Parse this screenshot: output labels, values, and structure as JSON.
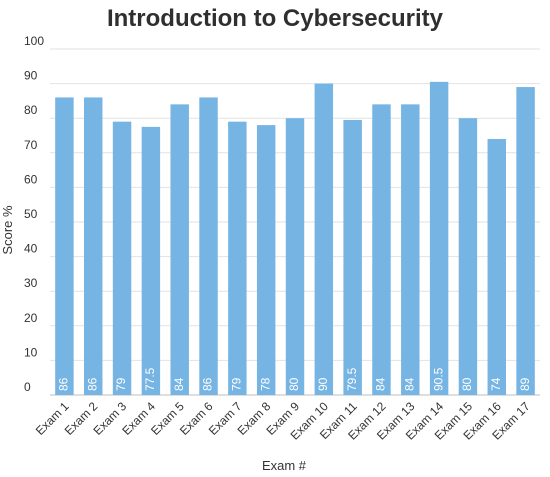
{
  "chart_data": {
    "type": "bar",
    "title": "Introduction to Cybersecurity",
    "xlabel": "Exam #",
    "ylabel": "Score %",
    "ylim": [
      0,
      100
    ],
    "yticks": [
      0,
      10,
      20,
      30,
      40,
      50,
      60,
      70,
      80,
      90,
      100
    ],
    "grid": true,
    "legend": "none",
    "bar_color": "#75b4e3",
    "categories": [
      "Exam 1",
      "Exam 2",
      "Exam 3",
      "Exam 4",
      "Exam 5",
      "Exam 6",
      "Exam 7",
      "Exam 8",
      "Exam 9",
      "Exam 10",
      "Exam 11",
      "Exam 12",
      "Exam 13",
      "Exam 14",
      "Exam 15",
      "Exam 16",
      "Exam 17"
    ],
    "values": [
      86,
      86,
      79,
      77.5,
      84,
      86,
      79,
      78,
      80,
      90,
      79.5,
      84,
      84,
      90.5,
      80,
      74,
      89
    ]
  }
}
